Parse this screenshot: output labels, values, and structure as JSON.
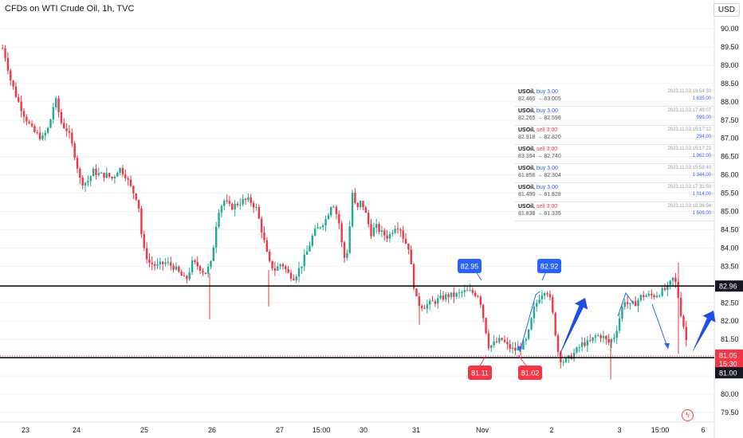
{
  "header": {
    "title": "CFDs on WTI Crude Oil, 1h, TVC",
    "currency": "USD"
  },
  "colors": {
    "up": "#22ab94",
    "down": "#f23645",
    "buy": "#2962ff",
    "sell": "#f23645",
    "grid": "#f0f3fa",
    "level": "#000000"
  },
  "chart_data": {
    "type": "candlestick",
    "title": "CFDs on WTI Crude Oil, 1h, TVC",
    "ylim": [
      79.3,
      90.6
    ],
    "y_ticks": [
      "90.00",
      "89.50",
      "89.00",
      "88.50",
      "88.00",
      "87.50",
      "87.00",
      "86.50",
      "86.00",
      "85.50",
      "85.00",
      "84.50",
      "84.00",
      "83.50",
      "83.00",
      "82.50",
      "82.00",
      "81.50",
      "81.00",
      "80.50",
      "80.00",
      "79.50"
    ],
    "x_ticks": [
      "23",
      "24",
      "25",
      "26",
      "27",
      "15:00",
      "30",
      "31",
      "Nov",
      "2",
      "3",
      "15:00",
      "6"
    ],
    "price_path": [
      [
        0,
        89.6
      ],
      [
        6,
        89.2
      ],
      [
        12,
        88.6
      ],
      [
        20,
        88.1
      ],
      [
        30,
        87.6
      ],
      [
        40,
        87.2
      ],
      [
        52,
        87.0
      ],
      [
        60,
        87.3
      ],
      [
        68,
        88.1
      ],
      [
        76,
        87.4
      ],
      [
        84,
        87.2
      ],
      [
        92,
        86.6
      ],
      [
        100,
        85.8
      ],
      [
        108,
        85.8
      ],
      [
        116,
        86.1
      ],
      [
        124,
        86.0
      ],
      [
        132,
        86.0
      ],
      [
        140,
        85.9
      ],
      [
        148,
        86.2
      ],
      [
        156,
        86.0
      ],
      [
        164,
        85.6
      ],
      [
        172,
        85.3
      ],
      [
        178,
        84.0
      ],
      [
        186,
        83.6
      ],
      [
        196,
        83.5
      ],
      [
        206,
        83.6
      ],
      [
        216,
        83.5
      ],
      [
        224,
        83.3
      ],
      [
        232,
        83.1
      ],
      [
        240,
        83.6
      ],
      [
        248,
        83.5
      ],
      [
        256,
        83.3
      ],
      [
        264,
        83.6
      ],
      [
        272,
        85.0
      ],
      [
        280,
        85.3
      ],
      [
        288,
        85.1
      ],
      [
        296,
        85.2
      ],
      [
        304,
        85.3
      ],
      [
        312,
        85.3
      ],
      [
        320,
        85.1
      ],
      [
        328,
        84.4
      ],
      [
        336,
        83.6
      ],
      [
        344,
        83.4
      ],
      [
        352,
        83.6
      ],
      [
        360,
        83.3
      ],
      [
        368,
        83.2
      ],
      [
        376,
        83.5
      ],
      [
        384,
        83.9
      ],
      [
        392,
        84.4
      ],
      [
        400,
        84.6
      ],
      [
        408,
        84.8
      ],
      [
        416,
        85.3
      ],
      [
        424,
        84.7
      ],
      [
        430,
        83.7
      ],
      [
        436,
        84.0
      ],
      [
        440,
        85.6
      ],
      [
        446,
        85.0
      ],
      [
        452,
        85.3
      ],
      [
        458,
        84.9
      ],
      [
        464,
        84.4
      ],
      [
        470,
        84.6
      ],
      [
        478,
        84.4
      ],
      [
        486,
        84.3
      ],
      [
        494,
        84.6
      ],
      [
        500,
        84.6
      ],
      [
        506,
        84.2
      ],
      [
        512,
        84.0
      ],
      [
        516,
        83.2
      ],
      [
        522,
        82.5
      ],
      [
        530,
        82.4
      ],
      [
        540,
        82.5
      ],
      [
        550,
        82.6
      ],
      [
        560,
        82.7
      ],
      [
        570,
        82.7
      ],
      [
        580,
        82.8
      ],
      [
        590,
        82.8
      ],
      [
        600,
        82.7
      ],
      [
        606,
        82.0
      ],
      [
        612,
        81.3
      ],
      [
        620,
        81.4
      ],
      [
        628,
        81.5
      ],
      [
        636,
        81.3
      ],
      [
        644,
        81.2
      ],
      [
        652,
        81.3
      ],
      [
        660,
        81.5
      ],
      [
        668,
        82.3
      ],
      [
        676,
        82.7
      ],
      [
        684,
        82.9
      ],
      [
        690,
        82.5
      ],
      [
        696,
        81.6
      ],
      [
        700,
        81.0
      ],
      [
        706,
        80.9
      ],
      [
        714,
        81.0
      ],
      [
        722,
        81.2
      ],
      [
        730,
        81.4
      ],
      [
        738,
        81.4
      ],
      [
        746,
        81.6
      ],
      [
        754,
        81.6
      ],
      [
        762,
        81.4
      ],
      [
        770,
        81.6
      ],
      [
        776,
        82.1
      ],
      [
        782,
        82.6
      ],
      [
        788,
        82.4
      ],
      [
        796,
        82.5
      ],
      [
        804,
        82.7
      ],
      [
        812,
        82.7
      ],
      [
        820,
        82.7
      ],
      [
        828,
        82.8
      ],
      [
        836,
        82.9
      ],
      [
        844,
        83.2
      ],
      [
        848,
        82.9
      ],
      [
        852,
        82.3
      ],
      [
        856,
        81.9
      ],
      [
        862,
        81.2
      ]
    ],
    "levels": [
      {
        "name": "resistance",
        "value": 82.96,
        "label": "82.96"
      },
      {
        "name": "support",
        "value": 81.0,
        "label": "81.00"
      }
    ],
    "current_price": {
      "value": 81.05,
      "label": "81.05",
      "countdown": "15:30"
    },
    "annotations": [
      {
        "label": "82.95",
        "value": 82.95,
        "kind": "high"
      },
      {
        "label": "82.92",
        "value": 82.92,
        "kind": "high"
      },
      {
        "label": "81.11",
        "value": 81.11,
        "kind": "low"
      },
      {
        "label": "81.02",
        "value": 81.02,
        "kind": "low"
      }
    ]
  },
  "trades": [
    {
      "symbol": "USOil,",
      "side": "buy",
      "qty": "3.00",
      "prices": "82.460 → 83.005",
      "time": "2023.11.03 19:54:30",
      "pnl": "1 635.00"
    },
    {
      "symbol": "USOil,",
      "side": "buy",
      "qty": "3.00",
      "prices": "82.265 → 82.598",
      "time": "2023.11.03 17:49:07",
      "pnl": "999.00"
    },
    {
      "symbol": "USOil,",
      "side": "sell",
      "qty": "3.00",
      "prices": "82.918 → 82.820",
      "time": "2023.11.03 15:17:12",
      "pnl": "294.00"
    },
    {
      "symbol": "USOil,",
      "side": "sell",
      "qty": "3.00",
      "prices": "83.394 → 82.740",
      "time": "2023.11.03 15:17:23",
      "pnl": "1 962.00"
    },
    {
      "symbol": "USOil,",
      "side": "buy",
      "qty": "3.00",
      "prices": "81.856 → 82.304",
      "time": "2023.11.03 15:58:40",
      "pnl": "1 344.00"
    },
    {
      "symbol": "USOil,",
      "side": "buy",
      "qty": "3.00",
      "prices": "81.490 → 81.828",
      "time": "2023.11.03 17:31:50",
      "pnl": "1 014.00"
    },
    {
      "symbol": "USOil,",
      "side": "sell",
      "qty": "3.00",
      "prices": "81.838 → 81.335",
      "time": "2023.11.03 18:36:56",
      "pnl": "1 509.00"
    }
  ]
}
